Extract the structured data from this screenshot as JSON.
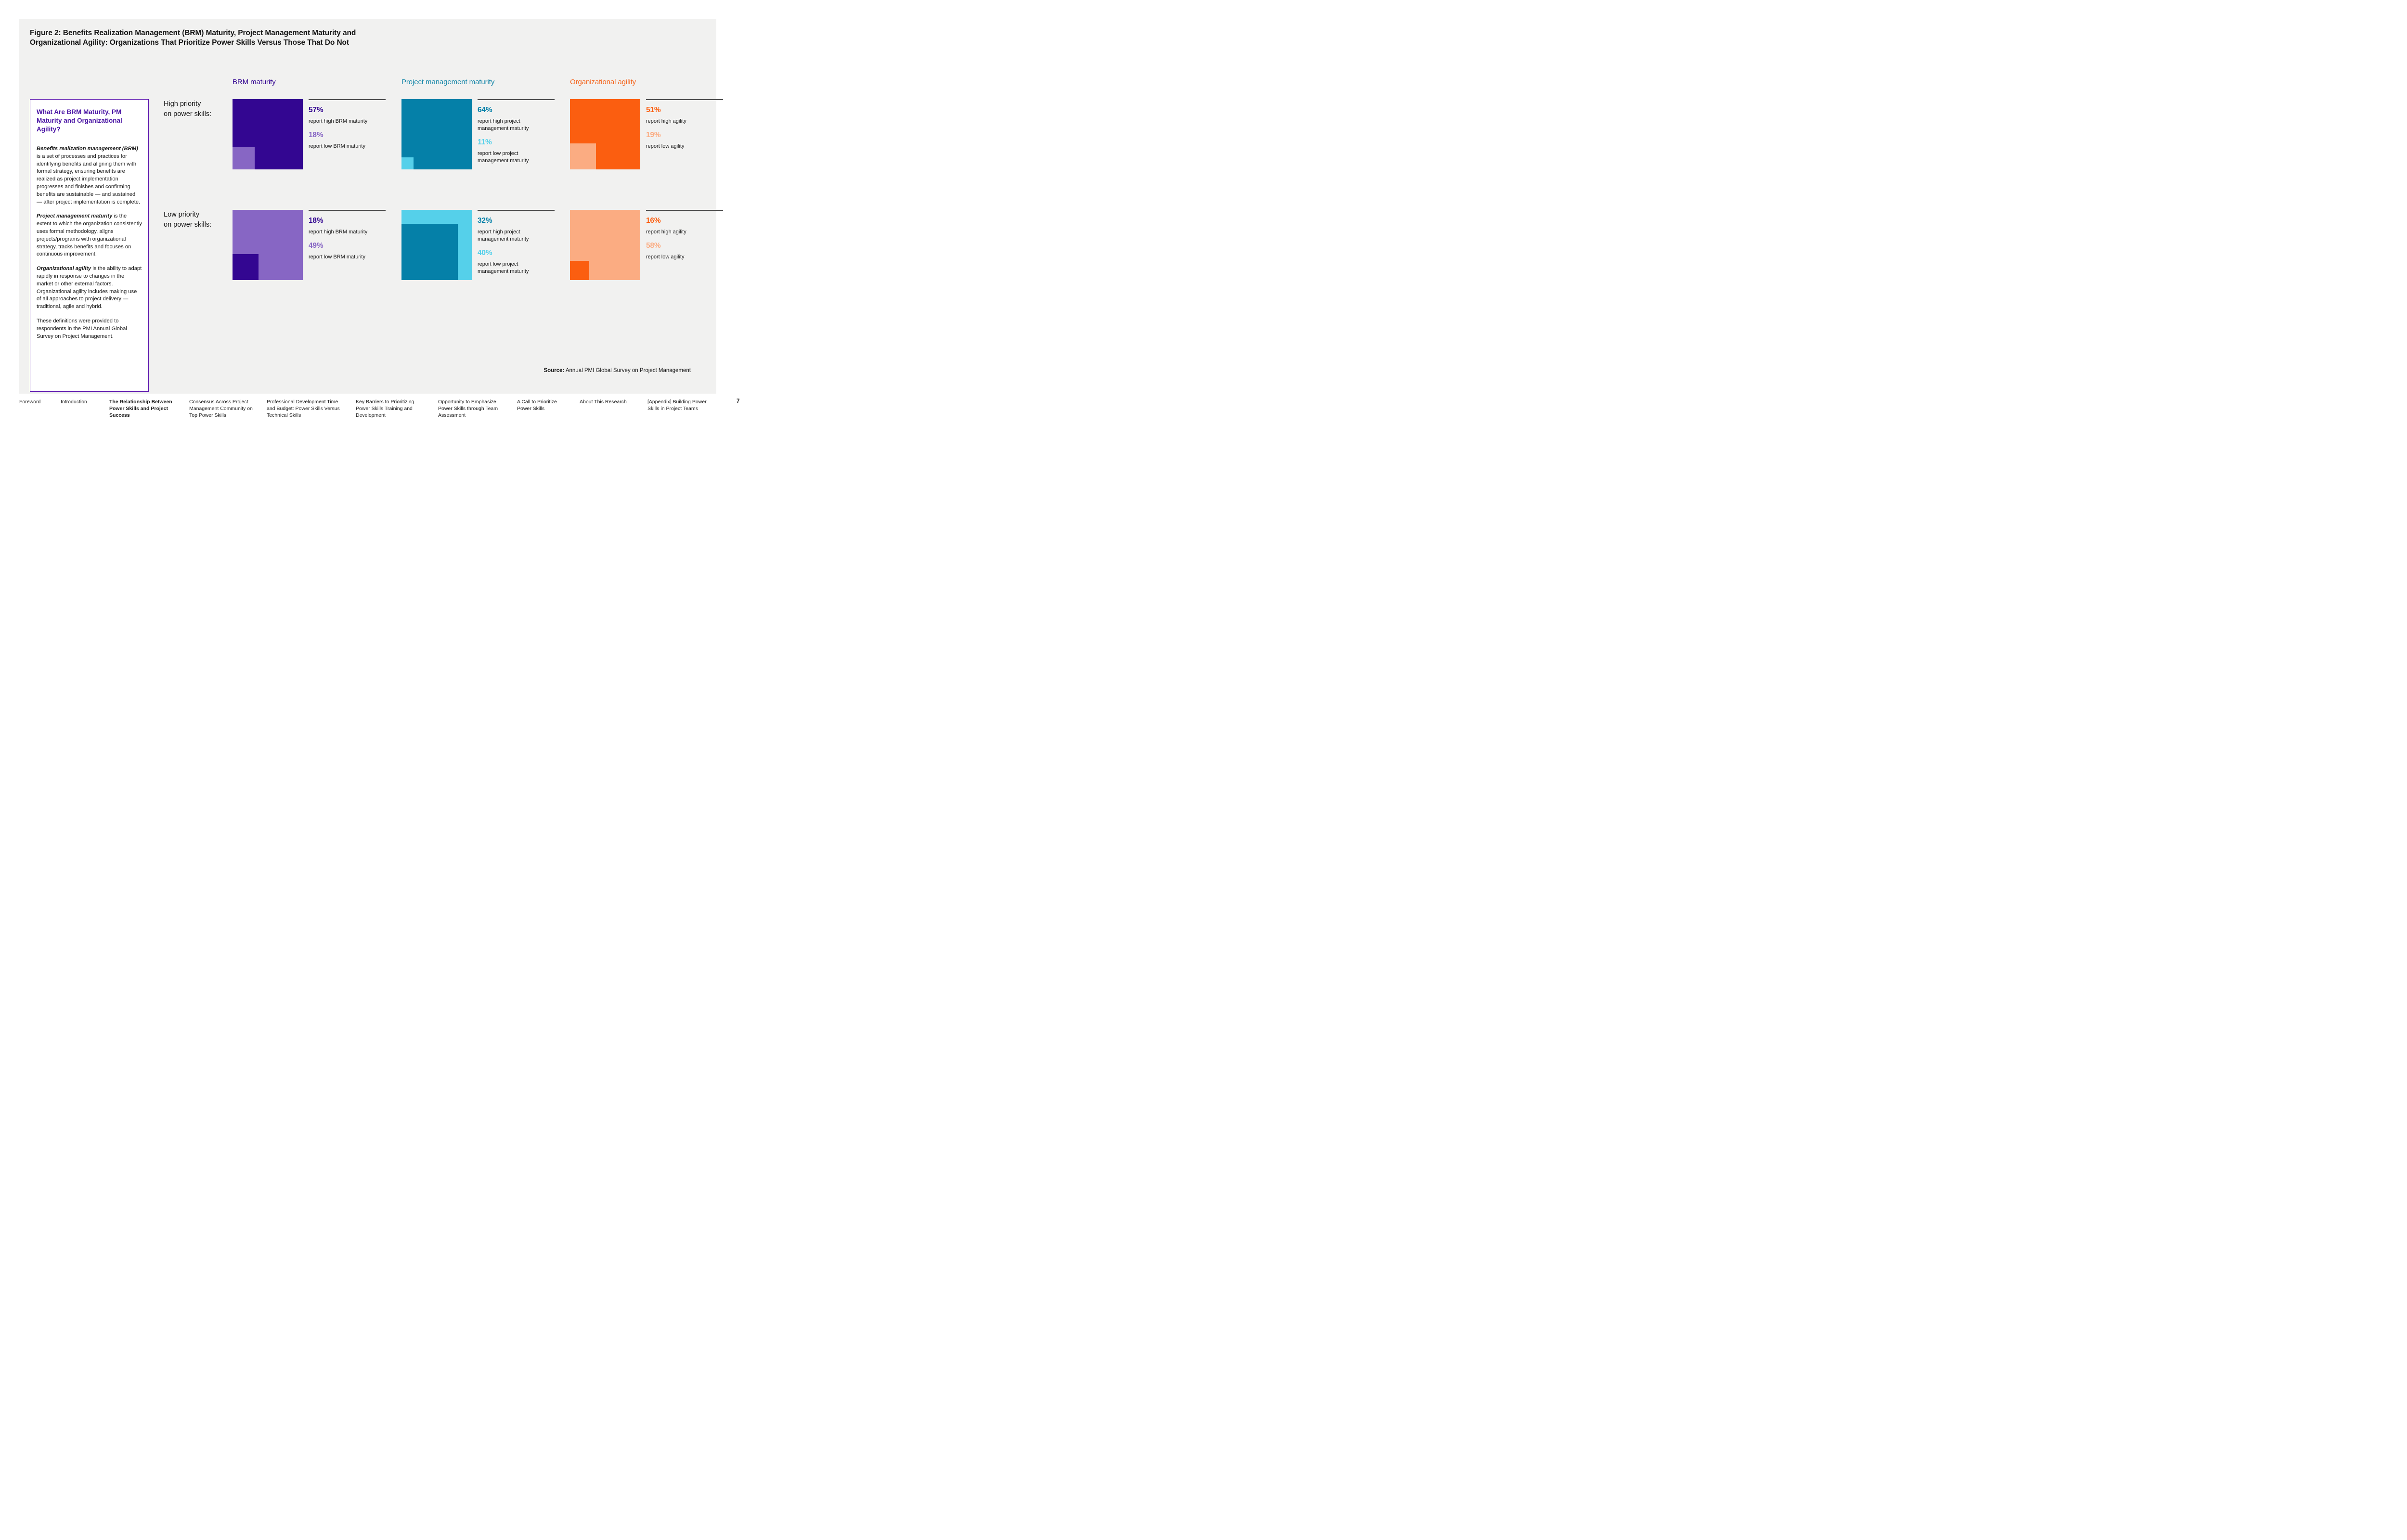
{
  "figure": {
    "title_line1": "Figure 2: Benefits Realization Management (BRM) Maturity, Project Management Maturity and",
    "title_line2": "Organizational Agility: Organizations That Prioritize Power Skills Versus Those That Do Not"
  },
  "colors": {
    "purple_dark": "#330691",
    "purple_light": "#8766c4",
    "teal": "#0580a8",
    "cyan": "#55d0ea",
    "orange": "#fb5e10",
    "peach": "#fbac82",
    "box_border_purple": "#5c14ae",
    "panel_background": "#f1f1f0"
  },
  "definitions_box": {
    "heading": "What Are BRM Maturity, PM Maturity and Organizational Agility?",
    "paragraphs": [
      {
        "lead": "Benefits realization management (BRM)",
        "text": " is a set of processes and practices for identifying benefits and aligning them with formal strategy, ensuring benefits are realized as project implementation progresses and finishes and confirming benefits are sustainable — and sustained — after project implementation is complete."
      },
      {
        "lead": "Project management maturity",
        "text": " is the extent to which the organization consistently uses formal methodology, aligns projects/programs with organizational strategy, tracks benefits and focuses on continuous improvement."
      },
      {
        "lead": "Organizational agility",
        "text": " is the ability to adapt rapidly in response to changes in the market or other external factors. Organizational agility includes making use of all approaches to project delivery — traditional, agile and hybrid."
      },
      {
        "lead": "",
        "text": "These definitions were provided to respondents in the PMI Annual Global Survey on Project Management."
      }
    ]
  },
  "chart_data": {
    "type": "proportional_area_squares",
    "row_labels": [
      {
        "line1": "High priority",
        "line2": "on power skills:"
      },
      {
        "line1": "Low priority",
        "line2": "on power skills:"
      }
    ],
    "columns": [
      {
        "header": "BRM maturity",
        "header_color": "#330691",
        "cells": {
          "high": {
            "square": {
              "base_value": 57,
              "base_color": "#330691",
              "inset_value": 18,
              "inset_color": "#8766c4"
            },
            "stats": [
              {
                "value": "57%",
                "color": "#330691",
                "caption": "report high BRM maturity"
              },
              {
                "value": "18%",
                "color": "#8766c4",
                "caption": "report low BRM maturity"
              }
            ]
          },
          "low": {
            "square": {
              "base_value": 49,
              "base_color": "#8766c4",
              "inset_value": 18,
              "inset_color": "#330691"
            },
            "stats": [
              {
                "value": "18%",
                "color": "#330691",
                "caption": "report high BRM maturity"
              },
              {
                "value": "49%",
                "color": "#8766c4",
                "caption": "report low BRM maturity"
              }
            ]
          }
        }
      },
      {
        "header": "Project management maturity",
        "header_color": "#1787a9",
        "cells": {
          "high": {
            "square": {
              "base_value": 64,
              "base_color": "#0580a8",
              "inset_value": 11,
              "inset_color": "#55d0ea"
            },
            "stats": [
              {
                "value": "64%",
                "color": "#0580a8",
                "caption": "report high project management maturity"
              },
              {
                "value": "11%",
                "color": "#55d0ea",
                "caption": "report low project management maturity"
              }
            ]
          },
          "low": {
            "square": {
              "base_value": 40,
              "base_color": "#55d0ea",
              "inset_value": 32,
              "inset_color": "#0580a8"
            },
            "stats": [
              {
                "value": "32%",
                "color": "#0580a8",
                "caption": "report high project management maturity"
              },
              {
                "value": "40%",
                "color": "#55d0ea",
                "caption": "report low project management maturity"
              }
            ]
          }
        }
      },
      {
        "header": "Organizational agility",
        "header_color": "#f4641c",
        "cells": {
          "high": {
            "square": {
              "base_value": 51,
              "base_color": "#fb5e10",
              "inset_value": 19,
              "inset_color": "#fbac82"
            },
            "stats": [
              {
                "value": "51%",
                "color": "#fb5e10",
                "caption": "report high agility"
              },
              {
                "value": "19%",
                "color": "#fbac82",
                "caption": "report low agility"
              }
            ]
          },
          "low": {
            "square": {
              "base_value": 58,
              "base_color": "#fbac82",
              "inset_value": 16,
              "inset_color": "#fb5e10"
            },
            "stats": [
              {
                "value": "16%",
                "color": "#fb5e10",
                "caption": "report high agility"
              },
              {
                "value": "58%",
                "color": "#fbac82",
                "caption": "report low agility"
              }
            ]
          }
        }
      }
    ]
  },
  "source": {
    "label": "Source:",
    "text": "Annual PMI Global Survey on Project Management"
  },
  "footer": {
    "items": [
      {
        "label": "Foreword",
        "active": false
      },
      {
        "label": "Introduction",
        "active": false
      },
      {
        "label": "The Relationship Between Power Skills and Project Success",
        "active": true
      },
      {
        "label": "Consensus Across Project Management Community on Top Power Skills",
        "active": false
      },
      {
        "label": "Professional Development Time and Budget: Power Skills Versus Technical Skills",
        "active": false
      },
      {
        "label": "Key Barriers to Prioritizing Power Skills Training and Development",
        "active": false
      },
      {
        "label": "Opportunity to Emphasize Power Skills through Team Assessment",
        "active": false
      },
      {
        "label": "A Call to Prioritize Power Skills",
        "active": false
      },
      {
        "label": "About This Research",
        "active": false
      },
      {
        "label": "[Appendix] Building Power Skills in Project Teams",
        "active": false
      }
    ],
    "page_number": "7"
  }
}
